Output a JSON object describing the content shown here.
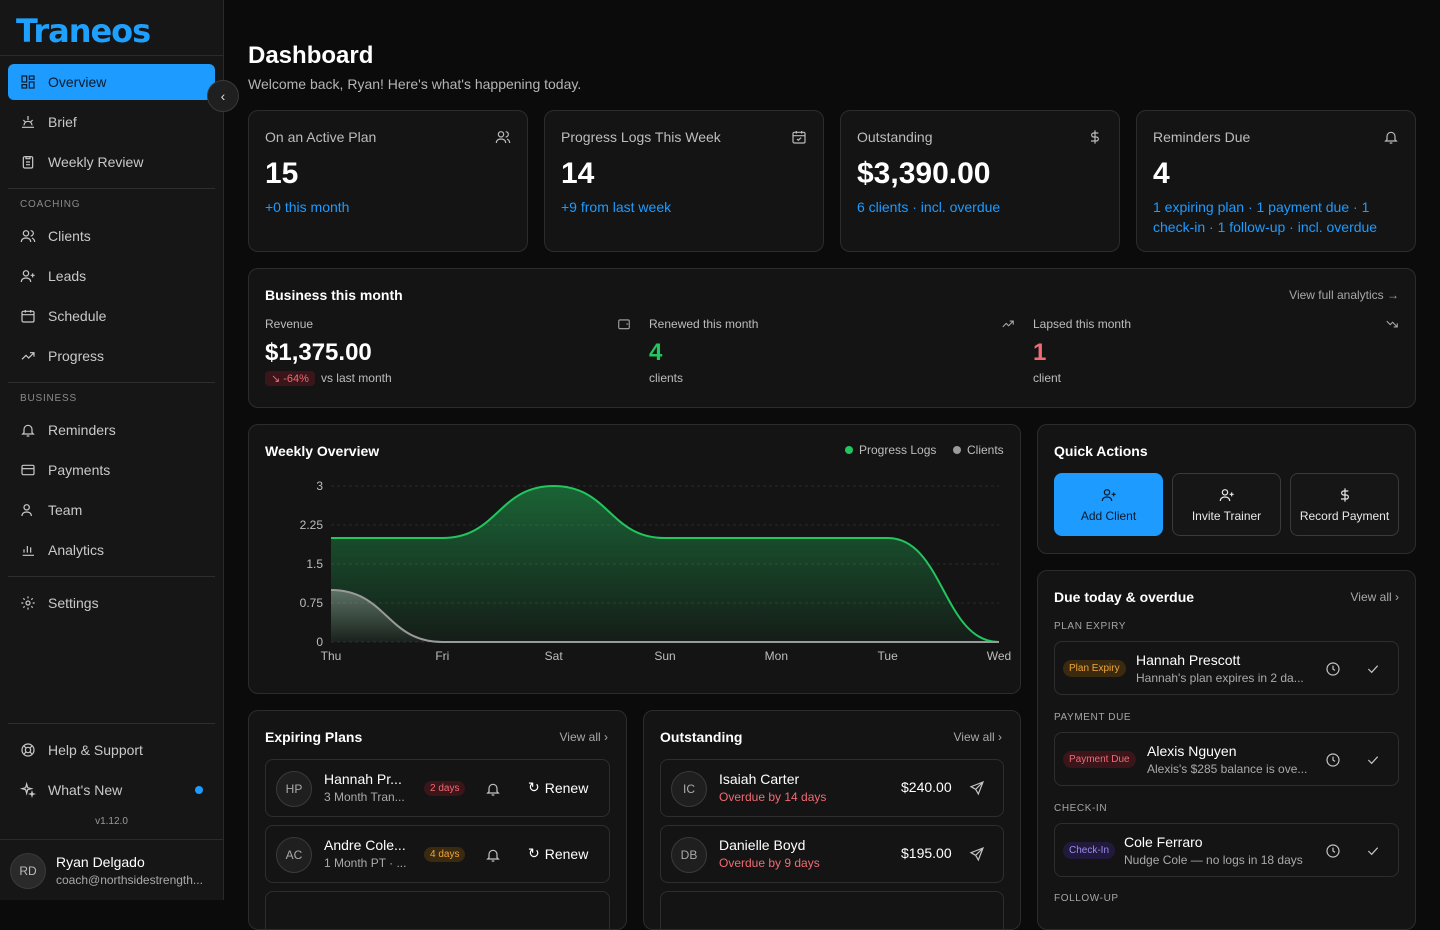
{
  "brand": {
    "name": "Traneos",
    "accent": "#1e9bff"
  },
  "sidebar": {
    "items": [
      {
        "label": "Overview",
        "icon": "grid-icon",
        "active": true
      },
      {
        "label": "Brief",
        "icon": "brief-icon"
      },
      {
        "label": "Weekly Review",
        "icon": "clipboard-icon"
      }
    ],
    "coaching_label": "COACHING",
    "coaching": [
      {
        "label": "Clients",
        "icon": "users-icon"
      },
      {
        "label": "Leads",
        "icon": "user-plus-icon"
      },
      {
        "label": "Schedule",
        "icon": "calendar-icon"
      },
      {
        "label": "Progress",
        "icon": "trending-up-icon"
      }
    ],
    "business_label": "BUSINESS",
    "business": [
      {
        "label": "Reminders",
        "icon": "bell-icon"
      },
      {
        "label": "Payments",
        "icon": "credit-card-icon"
      },
      {
        "label": "Team",
        "icon": "team-icon"
      },
      {
        "label": "Analytics",
        "icon": "bar-chart-icon"
      }
    ],
    "settings": "Settings",
    "help": "Help & Support",
    "whats_new": "What's New",
    "version": "v1.12.0",
    "user": {
      "initials": "RD",
      "name": "Ryan Delgado",
      "email": "coach@northsidestrength..."
    }
  },
  "header": {
    "title": "Dashboard",
    "subtitle": "Welcome back, Ryan! Here's what's happening today."
  },
  "stats": [
    {
      "label": "On an Active Plan",
      "value": "15",
      "note": "+0 this month",
      "icon": "users-icon"
    },
    {
      "label": "Progress Logs This Week",
      "value": "14",
      "note": "+9 from last week",
      "icon": "calendar-check-icon"
    },
    {
      "label": "Outstanding",
      "value": "$3,390.00",
      "note": "6 clients · incl. overdue",
      "icon": "dollar-icon"
    },
    {
      "label": "Reminders Due",
      "value": "4",
      "note": "1 expiring plan · 1 payment due · 1 check-in · 1 follow-up · incl. overdue",
      "icon": "bell-icon"
    }
  ],
  "business": {
    "title": "Business this month",
    "link": "View full analytics →",
    "revenue": {
      "label": "Revenue",
      "value": "$1,375.00",
      "delta": "↘ -64%",
      "delta_note": "vs last month"
    },
    "renewed": {
      "label": "Renewed this month",
      "value": "4",
      "sub": "clients",
      "color": "#22c55e"
    },
    "lapsed": {
      "label": "Lapsed this month",
      "value": "1",
      "sub": "client",
      "color": "#f06b75"
    }
  },
  "weekly": {
    "title": "Weekly Overview"
  },
  "chart_data": {
    "type": "area",
    "title": "Weekly Overview",
    "x": [
      "Thu",
      "Fri",
      "Sat",
      "Sun",
      "Mon",
      "Tue",
      "Wed"
    ],
    "ylim": [
      0,
      3
    ],
    "yticks": [
      "3",
      "2.25",
      "1.5",
      "0.75",
      "0"
    ],
    "series": [
      {
        "name": "Progress Logs",
        "values": [
          2,
          2,
          3,
          2,
          2,
          2,
          0
        ],
        "color": "#22c55e"
      },
      {
        "name": "Clients",
        "values": [
          1,
          0,
          0,
          0,
          0,
          0,
          0
        ],
        "color": "#9a9a9a"
      }
    ],
    "legend": "top-right",
    "grid": true
  },
  "quick": {
    "title": "Quick Actions",
    "actions": [
      {
        "label": "Add Client",
        "icon": "user-plus-icon"
      },
      {
        "label": "Invite Trainer",
        "icon": "user-plus-icon"
      },
      {
        "label": "Record Payment",
        "icon": "dollar-icon"
      }
    ]
  },
  "due": {
    "title": "Due today & overdue",
    "link": "View all",
    "groups": [
      {
        "label": "PLAN EXPIRY",
        "badge": "Plan Expiry",
        "name": "Hannah Prescott",
        "desc": "Hannah's plan expires in 2 da...",
        "bg": "#3a2a10",
        "fg": "#f0a53a"
      },
      {
        "label": "PAYMENT DUE",
        "badge": "Payment Due",
        "name": "Alexis Nguyen",
        "desc": "Alexis's $285 balance is ove...",
        "bg": "#3a1519",
        "fg": "#f06b75"
      },
      {
        "label": "CHECK-IN",
        "badge": "Check-In",
        "name": "Cole Ferraro",
        "desc": "Nudge Cole — no logs in 18 days",
        "bg": "#221a3d",
        "fg": "#9b8cf0"
      }
    ],
    "next_label": "FOLLOW-UP"
  },
  "expiring": {
    "title": "Expiring Plans",
    "link": "View all",
    "rows": [
      {
        "initials": "HP",
        "name": "Hannah Pr...",
        "sub": "3 Month Tran...",
        "days": "2 days",
        "bg": "#3a1519",
        "fg": "#f06b75",
        "action": "Renew"
      },
      {
        "initials": "AC",
        "name": "Andre Cole...",
        "sub": "1 Month PT · ...",
        "days": "4 days",
        "bg": "#3a2a10",
        "fg": "#f0a53a",
        "action": "Renew"
      }
    ]
  },
  "outstanding": {
    "title": "Outstanding",
    "link": "View all",
    "rows": [
      {
        "initials": "IC",
        "name": "Isaiah Carter",
        "sub": "Overdue by 14 days",
        "amount": "$240.00"
      },
      {
        "initials": "DB",
        "name": "Danielle Boyd",
        "sub": "Overdue by 9 days",
        "amount": "$195.00"
      }
    ]
  }
}
